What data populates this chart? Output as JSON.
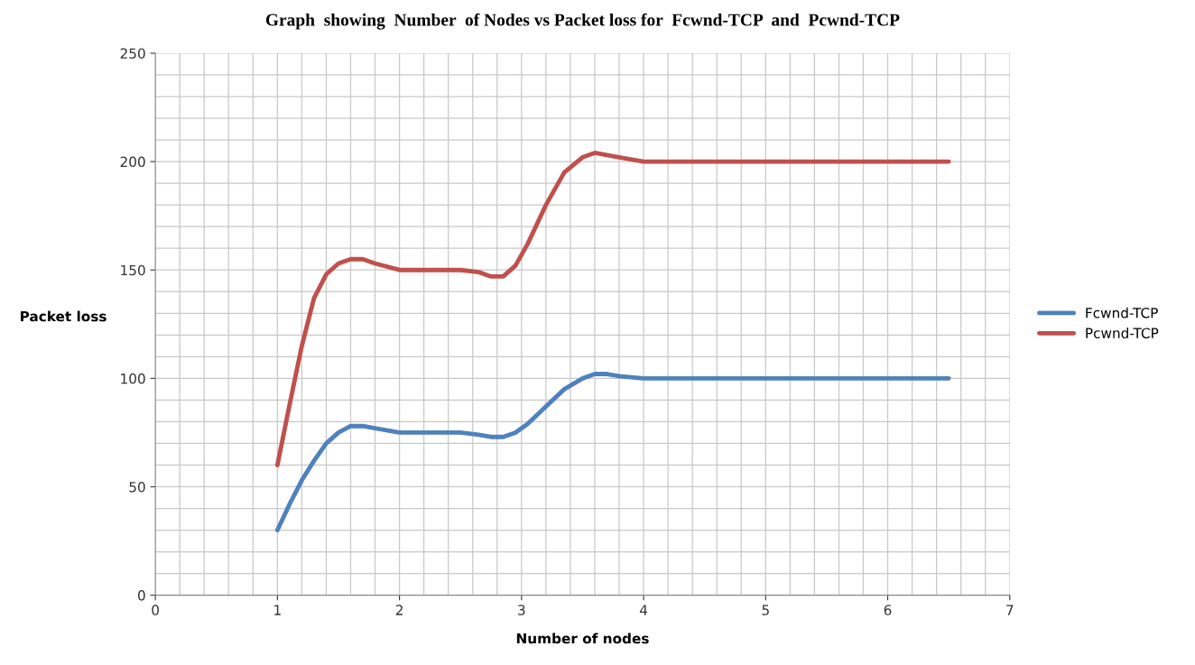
{
  "chart_data": {
    "type": "line",
    "title": "Graph  showing  Number  of Nodes vs Packet loss for  Fcwnd-TCP  and  Pcwnd-TCP",
    "xlabel": "Number of nodes",
    "ylabel": "Packet loss",
    "series": [
      {
        "name": "Fcwnd-TCP",
        "color": "#4f81bd",
        "x": [
          1,
          1.1,
          1.2,
          1.3,
          1.4,
          1.5,
          1.6,
          1.7,
          1.8,
          2,
          2.3,
          2.5,
          2.65,
          2.75,
          2.85,
          2.95,
          3.05,
          3.2,
          3.35,
          3.5,
          3.6,
          3.7,
          3.8,
          4,
          5,
          6.5
        ],
        "values": [
          30,
          42,
          53,
          62,
          70,
          75,
          78,
          78,
          77,
          75,
          75,
          75,
          74,
          73,
          73,
          75,
          79,
          87,
          95,
          100,
          102,
          102,
          101,
          100,
          100,
          100
        ]
      },
      {
        "name": "Pcwnd-TCP",
        "color": "#c0504d",
        "x": [
          1,
          1.1,
          1.2,
          1.3,
          1.4,
          1.5,
          1.6,
          1.7,
          1.8,
          2,
          2.3,
          2.5,
          2.65,
          2.75,
          2.85,
          2.95,
          3.05,
          3.2,
          3.35,
          3.5,
          3.6,
          3.7,
          3.8,
          4,
          5,
          6.5
        ],
        "values": [
          60,
          88,
          115,
          137,
          148,
          153,
          155,
          155,
          153,
          150,
          150,
          150,
          149,
          147,
          147,
          152,
          162,
          180,
          195,
          202,
          204,
          203,
          202,
          200,
          200,
          200
        ]
      }
    ],
    "xlim": [
      0,
      7
    ],
    "xticks": [
      0,
      1,
      2,
      3,
      4,
      5,
      6,
      7
    ],
    "ylim": [
      0,
      250
    ],
    "yticks": [
      0,
      50,
      100,
      150,
      200,
      250
    ],
    "grid": true,
    "legend": "right",
    "marker": "none",
    "line_style": "solid"
  }
}
